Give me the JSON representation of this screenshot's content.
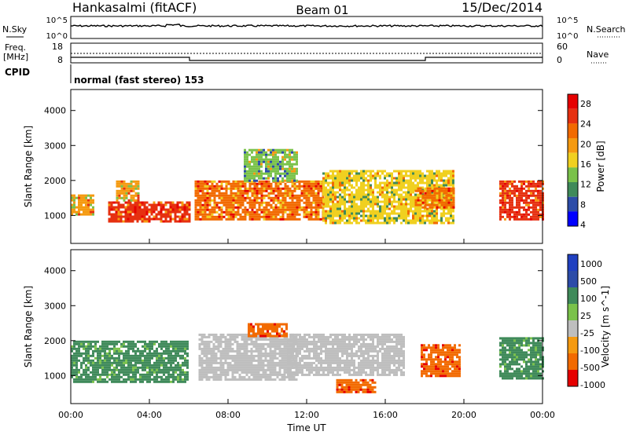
{
  "header": {
    "station": "Hankasalmi (fitACF)",
    "beam": "Beam 01",
    "date": "15/Dec/2014"
  },
  "nsky_panel": {
    "left_label": "N.Sky",
    "right_label": "N.Search",
    "ticks_left": [
      "10^5",
      "10^0"
    ],
    "ticks_right": [
      "10^5",
      "10^0"
    ]
  },
  "freq_panel": {
    "left_label_1": "Freq.",
    "left_label_2": "[MHz]",
    "right_label": "Nave",
    "ticks_left": [
      "18",
      "8"
    ],
    "ticks_right": [
      "60",
      "0"
    ]
  },
  "cpid": {
    "label": "CPID",
    "text": "normal (fast stereo) 153"
  },
  "time_axis": {
    "ticks": [
      "00:00",
      "04:00",
      "08:00",
      "12:00",
      "16:00",
      "20:00",
      "00:00"
    ],
    "label": "Time UT"
  },
  "colors": {
    "power_scale": [
      "#0000ff",
      "#2c4ca8",
      "#3f8a5a",
      "#7ac24a",
      "#f0d020",
      "#f59a10",
      "#f26a00",
      "#e63010",
      "#e60000"
    ],
    "velocity_scale": [
      "#e60000",
      "#f26a00",
      "#f59a10",
      "#bebebe",
      "#7ac24a",
      "#3f8a5a",
      "#2c4ca8",
      "#2040c0"
    ]
  },
  "chart_data": [
    {
      "type": "heatmap",
      "name": "power",
      "ylabel": "Slant Range [km]",
      "yticks": [
        "4000",
        "3000",
        "2000",
        "1000"
      ],
      "ylim": [
        200,
        4600
      ],
      "xlim_hours": [
        0,
        24
      ],
      "colorbar": {
        "label": "Power [dB]",
        "ticks": [
          "28",
          "24",
          "20",
          "16",
          "12",
          "8",
          "4"
        ],
        "range": [
          0,
          32
        ]
      },
      "regions": [
        {
          "t0": 0.0,
          "t1": 1.2,
          "r0": 1000,
          "r1": 1600,
          "level": 20
        },
        {
          "t0": 1.9,
          "t1": 6.0,
          "r0": 850,
          "r1": 1400,
          "level": 28
        },
        {
          "t0": 2.3,
          "t1": 3.5,
          "r0": 1400,
          "r1": 2000,
          "level": 20
        },
        {
          "t0": 6.3,
          "t1": 12.8,
          "r0": 900,
          "r1": 2000,
          "level": 24
        },
        {
          "t0": 8.8,
          "t1": 11.5,
          "r0": 2000,
          "r1": 2900,
          "level": 12
        },
        {
          "t0": 12.8,
          "t1": 19.5,
          "r0": 800,
          "r1": 2300,
          "level": 16
        },
        {
          "t0": 17.5,
          "t1": 19.5,
          "r0": 1200,
          "r1": 1800,
          "level": 24
        },
        {
          "t0": 21.8,
          "t1": 24.0,
          "r0": 900,
          "r1": 2000,
          "level": 28
        }
      ]
    },
    {
      "type": "heatmap",
      "name": "velocity",
      "ylabel": "Slant Range [km]",
      "yticks": [
        "4000",
        "3000",
        "2000",
        "1000"
      ],
      "ylim": [
        200,
        4600
      ],
      "xlim_hours": [
        0,
        24
      ],
      "colorbar": {
        "label": "Velocity [m s^-1]",
        "ticks": [
          "1000",
          "500",
          "100",
          "25",
          "-25",
          "-100",
          "-500",
          "-1000"
        ],
        "range": [
          -1200,
          1200
        ]
      },
      "regions": [
        {
          "t0": 0.0,
          "t1": 6.0,
          "r0": 800,
          "r1": 2000,
          "level": 100
        },
        {
          "t0": 6.5,
          "t1": 11.5,
          "r0": 900,
          "r1": 2200,
          "level": 0
        },
        {
          "t0": 9.0,
          "t1": 11.0,
          "r0": 2100,
          "r1": 2500,
          "level": -500
        },
        {
          "t0": 11.0,
          "t1": 17.0,
          "r0": 1000,
          "r1": 2200,
          "level": 0
        },
        {
          "t0": 13.5,
          "t1": 15.5,
          "r0": 500,
          "r1": 900,
          "level": -500
        },
        {
          "t0": 17.8,
          "t1": 19.8,
          "r0": 1000,
          "r1": 1900,
          "level": -500
        },
        {
          "t0": 21.8,
          "t1": 24.0,
          "r0": 900,
          "r1": 2100,
          "level": 100
        }
      ]
    }
  ]
}
